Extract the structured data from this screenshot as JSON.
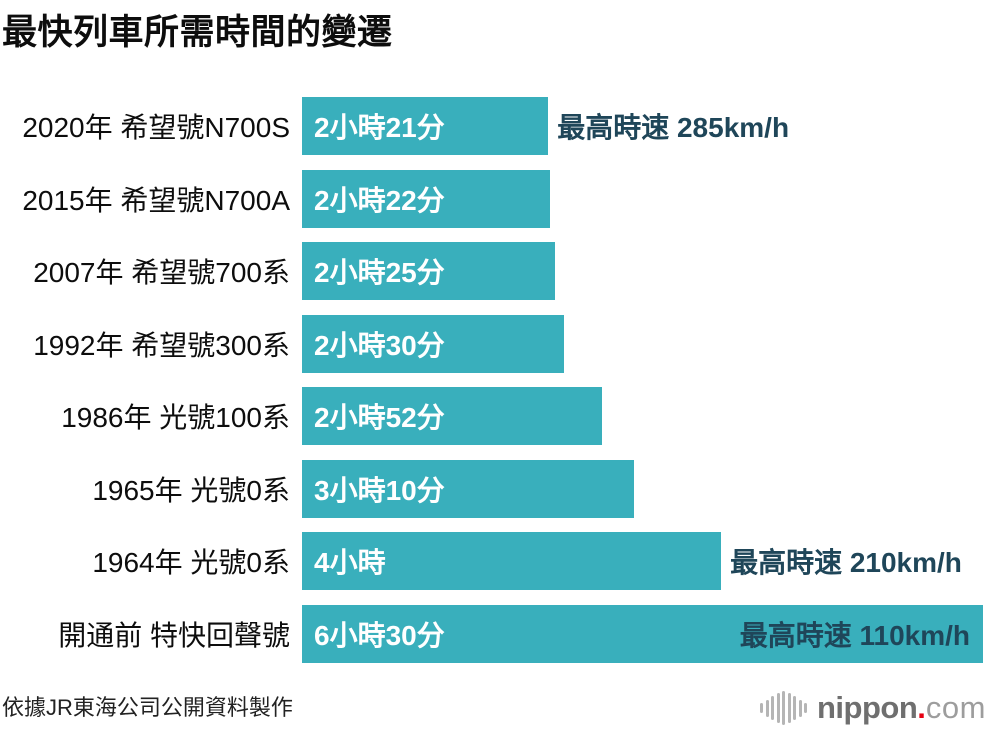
{
  "title": "最快列車所需時間的變遷",
  "footer": {
    "source": "依據JR東海公司公開資料製作"
  },
  "logo": {
    "icon": "sound-wave-icon",
    "text_bold": "nippon",
    "text_dot": ".",
    "text_light": "com"
  },
  "colors": {
    "bar": "#39AFBC",
    "bar_text": "#FFFFFF",
    "annotation": "#1F4659",
    "title_text": "#0D0D0D",
    "label_text": "#0D0D0D",
    "footer_text": "#222222",
    "logo_gray": "#6F6F6F",
    "logo_light_gray": "#9D9D9D",
    "logo_red": "#E60012"
  },
  "chart_data": {
    "type": "bar",
    "orientation": "horizontal",
    "title": "最快列車所需時間的變遷",
    "xlabel": "",
    "ylabel": "",
    "unit": "minutes",
    "value_axis_range": [
      0,
      390
    ],
    "grid": false,
    "legend": false,
    "categories": [
      "2020年 希望號N700S",
      "2015年 希望號N700A",
      "2007年 希望號700系",
      "1992年 希望號300系",
      "1986年 光號100系",
      "1965年 光號0系",
      "1964年 光號0系",
      "開通前 特快回聲號"
    ],
    "values_minutes": [
      141,
      142,
      145,
      150,
      172,
      190,
      240,
      390
    ],
    "rows": [
      {
        "label": "2020年 希望號N700S",
        "value_label": "2小時21分",
        "minutes": 141,
        "annotation": "最高時速 285km/h",
        "annotation_position": "outside"
      },
      {
        "label": "2015年 希望號N700A",
        "value_label": "2小時22分",
        "minutes": 142,
        "annotation": null,
        "annotation_position": null
      },
      {
        "label": "2007年 希望號700系",
        "value_label": "2小時25分",
        "minutes": 145,
        "annotation": null,
        "annotation_position": null
      },
      {
        "label": "1992年 希望號300系",
        "value_label": "2小時30分",
        "minutes": 150,
        "annotation": null,
        "annotation_position": null
      },
      {
        "label": "1986年 光號100系",
        "value_label": "2小時52分",
        "minutes": 172,
        "annotation": null,
        "annotation_position": null
      },
      {
        "label": "1965年 光號0系",
        "value_label": "3小時10分",
        "minutes": 190,
        "annotation": null,
        "annotation_position": null
      },
      {
        "label": "1964年 光號0系",
        "value_label": "4小時",
        "minutes": 240,
        "annotation": "最高時速 210km/h",
        "annotation_position": "outside"
      },
      {
        "label": "開通前 特快回聲號",
        "value_label": "6小時30分",
        "minutes": 390,
        "annotation": "最高時速 110km/h",
        "annotation_position": "inside"
      }
    ]
  }
}
